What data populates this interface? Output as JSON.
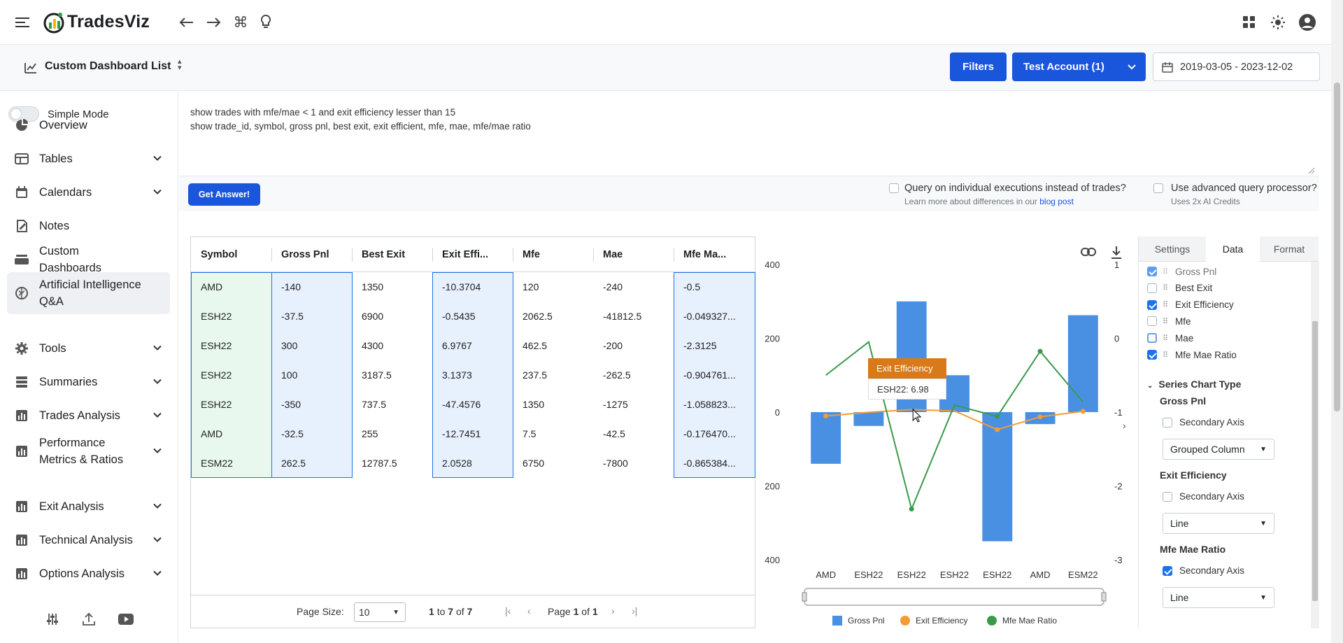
{
  "app": {
    "name": "TradesViz"
  },
  "header": {
    "dashboard_title": "Custom Dashboard List",
    "filters_label": "Filters",
    "account_label": "Test Account (1)",
    "date_range": "2019-03-05 - 2023-12-02"
  },
  "sidebar": {
    "simple_mode_label": "Simple Mode",
    "items": [
      {
        "label": "Overview",
        "icon": "pie-chart-icon",
        "chevron": false
      },
      {
        "label": "Tables",
        "icon": "table-icon",
        "chevron": true
      },
      {
        "label": "Calendars",
        "icon": "calendar-icon",
        "chevron": true
      },
      {
        "label": "Notes",
        "icon": "notes-icon",
        "chevron": false
      },
      {
        "label": "Custom Dashboards",
        "icon": "dashboard-icon",
        "chevron": false
      },
      {
        "label": "Artificial Intelligence Q&A",
        "icon": "brain-icon",
        "chevron": false,
        "active": true
      },
      {
        "label": "Tools",
        "icon": "gear-icon",
        "chevron": true
      },
      {
        "label": "Summaries",
        "icon": "stack-icon",
        "chevron": true
      },
      {
        "label": "Trades Analysis",
        "icon": "bar-chart-icon",
        "chevron": true
      },
      {
        "label": "Performance Metrics & Ratios",
        "icon": "bar-chart-icon",
        "chevron": true
      },
      {
        "label": "Exit Analysis",
        "icon": "bar-chart-icon",
        "chevron": true
      },
      {
        "label": "Technical Analysis",
        "icon": "bar-chart-icon",
        "chevron": true
      },
      {
        "label": "Options Analysis",
        "icon": "bar-chart-icon",
        "chevron": true
      }
    ]
  },
  "query": {
    "line1": "show trades with mfe/mae < 1 and exit efficiency lesser than 15",
    "line2": "show trade_id, symbol, gross pnl, best exit, exit efficient, mfe, mae, mfe/mae ratio"
  },
  "actions": {
    "get_answer": "Get Answer!",
    "opt1_label": "Query on individual executions instead of trades?",
    "opt1_sub_prefix": "Learn more about differences in our ",
    "opt1_link": "blog post",
    "opt2_label": "Use advanced query processor?",
    "opt2_sub": "Uses 2x AI Credits"
  },
  "table": {
    "columns": [
      "Symbol",
      "Gross Pnl",
      "Best Exit",
      "Exit Effi...",
      "Mfe",
      "Mae",
      "Mfe Ma..."
    ],
    "rows": [
      [
        "AMD",
        "-140",
        "1350",
        "-10.3704",
        "120",
        "-240",
        "-0.5"
      ],
      [
        "ESH22",
        "-37.5",
        "6900",
        "-0.5435",
        "2062.5",
        "-41812.5",
        "-0.049327..."
      ],
      [
        "ESH22",
        "300",
        "4300",
        "6.9767",
        "462.5",
        "-200",
        "-2.3125"
      ],
      [
        "ESH22",
        "100",
        "3187.5",
        "3.1373",
        "237.5",
        "-262.5",
        "-0.904761..."
      ],
      [
        "ESH22",
        "-350",
        "737.5",
        "-47.4576",
        "1350",
        "-1275",
        "-1.058823..."
      ],
      [
        "AMD",
        "-32.5",
        "255",
        "-12.7451",
        "7.5",
        "-42.5",
        "-0.176470..."
      ],
      [
        "ESM22",
        "262.5",
        "12787.5",
        "2.0528",
        "6750",
        "-7800",
        "-0.865384..."
      ]
    ],
    "page_size_label": "Page Size:",
    "page_size_value": "10",
    "range_from": "1",
    "range_to": "7",
    "range_of": "7",
    "to_word": "to",
    "of_word": "of",
    "page_word": "Page",
    "page_current": "1",
    "page_total": "1"
  },
  "chart_data": {
    "type": "bar",
    "categories": [
      "AMD",
      "ESH22",
      "ESH22",
      "ESH22",
      "ESH22",
      "AMD",
      "ESM22"
    ],
    "series": [
      {
        "name": "Gross Pnl",
        "chart": "bar",
        "axis": "left",
        "color": "#4a90e2",
        "values": [
          -140,
          -37.5,
          300,
          100,
          -350,
          -32.5,
          262.5
        ]
      },
      {
        "name": "Exit Efficiency",
        "chart": "line",
        "axis": "left",
        "color": "#f39c34",
        "values": [
          -10.37,
          -0.54,
          6.98,
          3.14,
          -47.46,
          -12.75,
          2.05
        ]
      },
      {
        "name": "Mfe Mae Ratio",
        "chart": "line",
        "axis": "right",
        "color": "#3a9a4a",
        "values": [
          -0.5,
          -0.049,
          -2.3125,
          -0.905,
          -1.059,
          -0.176,
          -0.865
        ]
      }
    ],
    "ylim": [
      -400,
      400
    ],
    "y_ticks": [
      "400",
      "200",
      "0",
      "-200",
      "-400"
    ],
    "y2lim": [
      -3,
      1
    ],
    "y2_ticks": [
      "1",
      "0",
      "-1",
      "-2",
      "-3"
    ],
    "legend_position": "bottom",
    "tooltip": {
      "title": "Exit Efficiency",
      "text": "ESH22: 6.98"
    }
  },
  "panel": {
    "tabs": [
      "Settings",
      "Data",
      "Format"
    ],
    "fields": [
      {
        "label": "Gross Pnl",
        "checked": true
      },
      {
        "label": "Best Exit",
        "checked": false
      },
      {
        "label": "Exit Efficiency",
        "checked": true
      },
      {
        "label": "Mfe",
        "checked": false
      },
      {
        "label": "Mae",
        "checked": false
      },
      {
        "label": "Mfe Mae Ratio",
        "checked": true
      }
    ],
    "section_title": "Series Chart Type",
    "secondary_axis_label": "Secondary Axis",
    "series": [
      {
        "name": "Gross Pnl",
        "secondary": false,
        "type": "Grouped Column"
      },
      {
        "name": "Exit Efficiency",
        "secondary": false,
        "type": "Line"
      },
      {
        "name": "Mfe Mae Ratio",
        "secondary": true,
        "type": "Line"
      }
    ]
  }
}
